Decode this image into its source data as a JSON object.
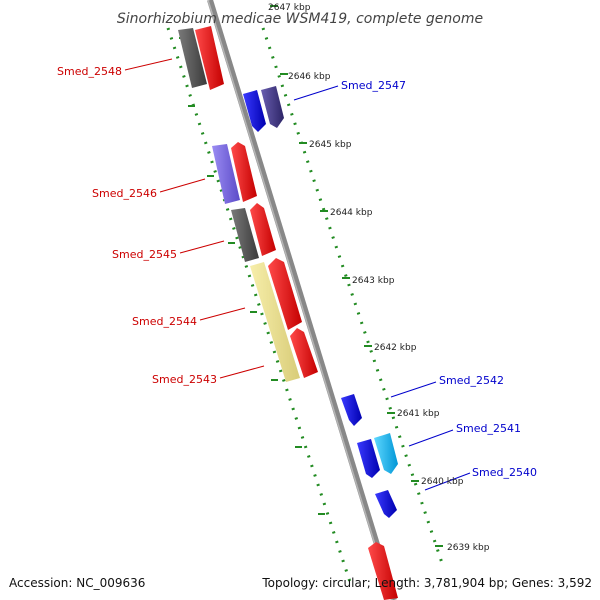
{
  "title": "Sinorhizobium medicae WSM419, complete genome",
  "footer": {
    "accession": "Accession: NC_009636",
    "topology": "Topology: circular; Length: 3,781,904 bp; Genes: 3,592"
  },
  "kbp_ticks": [
    "2647 kbp",
    "2646 kbp",
    "2645 kbp",
    "2644 kbp",
    "2643 kbp",
    "2642 kbp",
    "2641 kbp",
    "2640 kbp",
    "2639 kbp"
  ],
  "genes_left": [
    "Smed_2548",
    "Smed_2546",
    "Smed_2545",
    "Smed_2544",
    "Smed_2543"
  ],
  "genes_right": [
    "Smed_2547",
    "Smed_2542",
    "Smed_2541",
    "Smed_2540"
  ],
  "colors": {
    "left_labels": "#cc0000",
    "right_labels": "#0000cc",
    "backbone": "#888888",
    "tick_marks": "#228b22",
    "red_feature": "#ff0000",
    "blue_feature": "#0000ff",
    "gray_feature": "#555555",
    "lavender_feature": "#7b68ee",
    "khaki_feature": "#f0e68c",
    "cyan_feature": "#00bfff",
    "slate_feature": "#483d8b"
  }
}
